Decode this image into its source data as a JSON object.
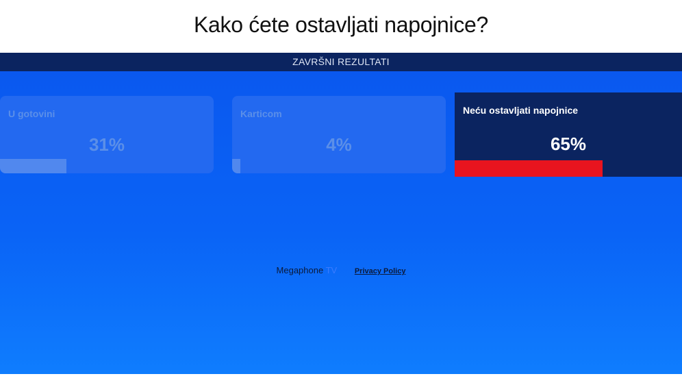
{
  "page": {
    "title": "Kako ćete ostavljati napojnice?"
  },
  "poll": {
    "header": "ZAVRŠNI REZULTATI",
    "options": [
      {
        "label": "U gotovini",
        "percent_text": "31%",
        "percent": 31,
        "winner": false
      },
      {
        "label": "Karticom",
        "percent_text": "4%",
        "percent": 4,
        "winner": false
      },
      {
        "label": "Neću ostavljati napojnice",
        "percent_text": "65%",
        "percent": 65,
        "winner": true
      }
    ],
    "colors": {
      "background": "#0a63f6",
      "header_bar": "#0b2460",
      "winner_card": "#0b2460",
      "winner_fill": "#e8141f",
      "loser_fill": "#5188ee"
    }
  },
  "footer": {
    "brand_main": "Megaphone",
    "brand_suffix": "TV",
    "privacy_link": "Privacy Policy"
  }
}
